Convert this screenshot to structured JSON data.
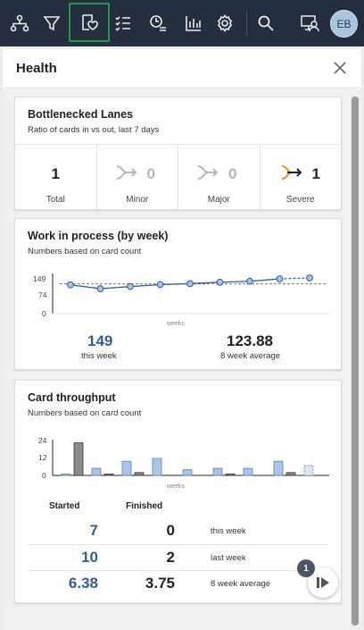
{
  "topbar": {
    "icons": [
      "hierarchy-icon",
      "filter-icon",
      "health-icon",
      "checklist-icon",
      "timeline-icon",
      "bar-chart-icon",
      "gear-icon",
      "search-icon",
      "presentation-user-icon"
    ],
    "active_icon": "health-icon",
    "avatar_initials": "EB",
    "accent_color": "#1f9b4b"
  },
  "panel": {
    "title": "Health"
  },
  "bottlenecked": {
    "title": "Bottlenecked Lanes",
    "subtitle": "Ratio of cards in vs out, last 7 days",
    "lanes": [
      {
        "value": "1",
        "label": "Total"
      },
      {
        "value": "0",
        "label": "Minor"
      },
      {
        "value": "0",
        "label": "Major"
      },
      {
        "value": "1",
        "label": "Severe"
      }
    ],
    "severe_color": "#f08a24"
  },
  "wip": {
    "title": "Work in process (by week)",
    "subtitle": "Numbers based on card count",
    "this_week_value": "149",
    "this_week_label": "this week",
    "avg_value": "123.88",
    "avg_label": "8 week average",
    "chart_data": {
      "type": "line",
      "xlabel": "weeks",
      "yticks": [
        0,
        74,
        149
      ],
      "ylim": [
        0,
        149
      ],
      "values": [
        120,
        104,
        113,
        121,
        125,
        131,
        135,
        145,
        149
      ],
      "average": 123.88
    }
  },
  "throughput": {
    "title": "Card throughput",
    "subtitle": "Numbers based on card count",
    "col_started": "Started",
    "col_finished": "Finished",
    "rows": [
      {
        "started": "7",
        "finished": "0",
        "label": "this week"
      },
      {
        "started": "10",
        "finished": "2",
        "label": "last week"
      },
      {
        "started": "6.38",
        "finished": "3.75",
        "label": "8 week average"
      }
    ],
    "chart_data": {
      "type": "bar",
      "xlabel": "weeks",
      "yticks": [
        0,
        12,
        24
      ],
      "ylim": [
        0,
        24
      ],
      "series": [
        {
          "values": [
            1,
            5,
            10,
            12,
            4,
            5,
            5,
            10,
            7
          ]
        },
        {
          "values": [
            23,
            1,
            2,
            0,
            0,
            1,
            0,
            2,
            0
          ]
        }
      ]
    }
  },
  "fab": {
    "badge": "1"
  }
}
